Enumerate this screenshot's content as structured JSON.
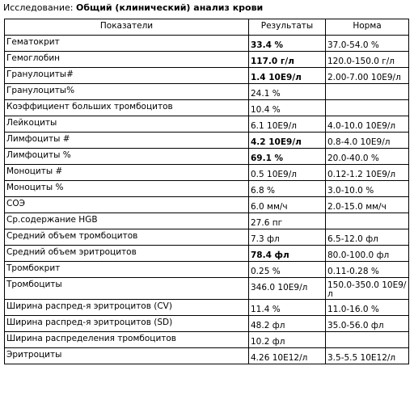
{
  "heading": {
    "prefix": "Исследование: ",
    "name": "Общий (клинический) анализ крови"
  },
  "columns": [
    "Показатели",
    "Результаты",
    "Норма"
  ],
  "rows": [
    {
      "name": "Гематокрит",
      "result": "33.4 %",
      "norm": "37.0-54.0 %",
      "bold": true
    },
    {
      "name": "Гемоглобин",
      "result": "117.0 г/л",
      "norm": "120.0-150.0 г/л",
      "bold": true
    },
    {
      "name": "Гранулоциты#",
      "result": "1.4 10E9/л",
      "norm": "2.00-7.00 10E9/л",
      "bold": true
    },
    {
      "name": "Гранулоциты%",
      "result": "24.1 %",
      "norm": "",
      "bold": false
    },
    {
      "name": "Коэффициент больших тромбоцитов",
      "result": "10.4 %",
      "norm": "",
      "bold": false
    },
    {
      "name": "Лейкоциты",
      "result": "6.1 10E9/л",
      "norm": "4.0-10.0 10E9/л",
      "bold": false
    },
    {
      "name": "Лимфоциты #",
      "result": "4.2 10E9/л",
      "norm": "0.8-4.0 10E9/л",
      "bold": true
    },
    {
      "name": "Лимфоциты %",
      "result": "69.1 %",
      "norm": "20.0-40.0 %",
      "bold": true
    },
    {
      "name": "Моноциты #",
      "result": "0.5 10E9/л",
      "norm": "0.12-1.2 10E9/л",
      "bold": false
    },
    {
      "name": "Моноциты %",
      "result": "6.8 %",
      "norm": "3.0-10.0 %",
      "bold": false
    },
    {
      "name": "СОЭ",
      "result": "6.0 мм/ч",
      "norm": "2.0-15.0 мм/ч",
      "bold": false
    },
    {
      "name": "Ср.содержание HGB",
      "result": "27.6 пг",
      "norm": "",
      "bold": false
    },
    {
      "name": "Средний объем тромбоцитов",
      "result": "7.3 фл",
      "norm": "6.5-12.0 фл",
      "bold": false
    },
    {
      "name": "Средний объем эритроцитов",
      "result": "78.4 фл",
      "norm": "80.0-100.0 фл",
      "bold": true
    },
    {
      "name": "Тромбокрит",
      "result": "0.25 %",
      "norm": "0.11-0.28 %",
      "bold": false
    },
    {
      "name": "Тромбоциты",
      "result": "346.0 10E9/л",
      "norm": "150.0-350.0 10E9/л",
      "bold": false,
      "wrap": true
    },
    {
      "name": "Ширина распред-я эритроцитов (CV)",
      "result": "11.4 %",
      "norm": "11.0-16.0 %",
      "bold": false
    },
    {
      "name": "Ширина распред-я эритроцитов (SD)",
      "result": "48.2 фл",
      "norm": "35.0-56.0 фл",
      "bold": false
    },
    {
      "name": "Ширина распределения тромбоцитов",
      "result": "10.2 фл",
      "norm": "",
      "bold": false
    },
    {
      "name": "Эритроциты",
      "result": "4.26 10E12/л",
      "norm": "3.5-5.5 10E12/л",
      "bold": false
    }
  ]
}
